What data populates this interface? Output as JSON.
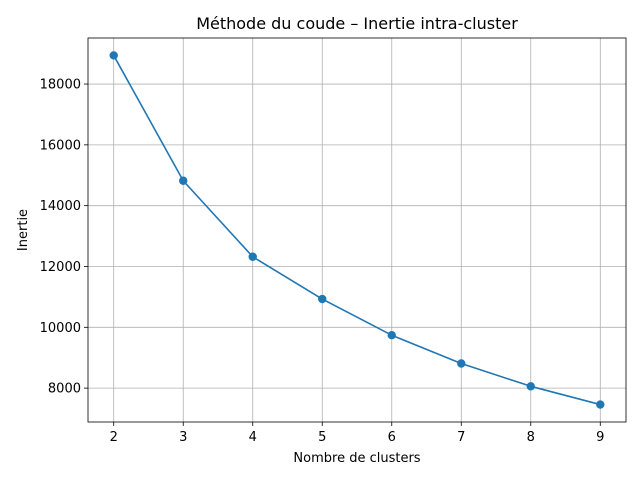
{
  "chart_data": {
    "type": "line",
    "title": "Méthode du coude – Inertie intra-cluster",
    "xlabel": "Nombre de clusters",
    "ylabel": "Inertie",
    "x": [
      2,
      3,
      4,
      5,
      6,
      7,
      8,
      9
    ],
    "series": [
      {
        "values": [
          18940,
          14820,
          12320,
          10930,
          9740,
          8810,
          8060,
          7460
        ],
        "color": "#1f77b4",
        "marker": "circle"
      }
    ],
    "xticks": [
      2,
      3,
      4,
      5,
      6,
      7,
      8,
      9
    ],
    "yticks": [
      8000,
      10000,
      12000,
      14000,
      16000,
      18000
    ],
    "xlim": [
      1.63,
      9.37
    ],
    "ylim": [
      6886,
      19514
    ],
    "grid": true
  }
}
